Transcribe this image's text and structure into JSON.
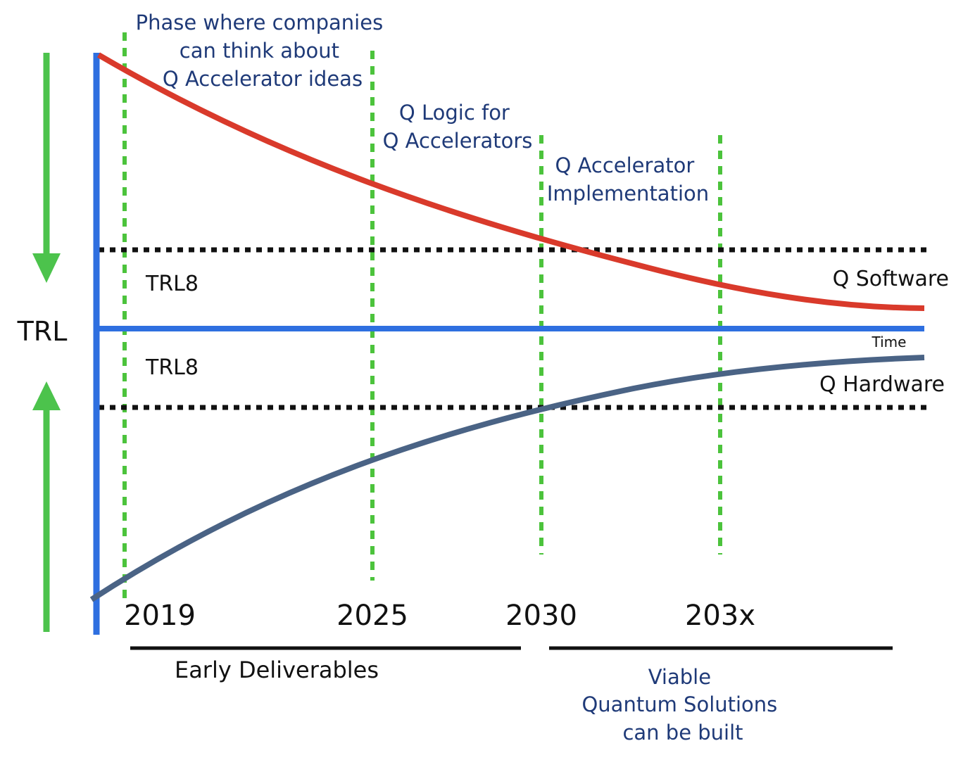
{
  "axis": {
    "y_label": "TRL",
    "x_label": "Time",
    "trl_upper_label": "TRL8",
    "trl_lower_label": "TRL8"
  },
  "phases": [
    {
      "lines": [
        "Phase where companies",
        "can think about",
        "Q Accelerator ideas"
      ]
    },
    {
      "lines": [
        "Q Logic for",
        "Q Accelerators"
      ]
    },
    {
      "lines": [
        "Q Accelerator",
        "Implementation"
      ]
    }
  ],
  "milestones": [
    "2019",
    "2025",
    "2030",
    "203x"
  ],
  "curves": {
    "software": {
      "label": "Q Software",
      "color": "#d93a2b"
    },
    "hardware": {
      "label": "Q Hardware",
      "color": "#4a6385"
    }
  },
  "periods": {
    "early": {
      "label": "Early Deliverables"
    },
    "viable": {
      "lines": [
        "Viable",
        "Quantum Solutions",
        "can be built"
      ]
    }
  },
  "colors": {
    "axis": "#2e6fe0",
    "arrows": "#4cc34c",
    "guides": "#4cc33c",
    "trl_threshold": "#111111",
    "phase_text": "#1f3a78"
  }
}
